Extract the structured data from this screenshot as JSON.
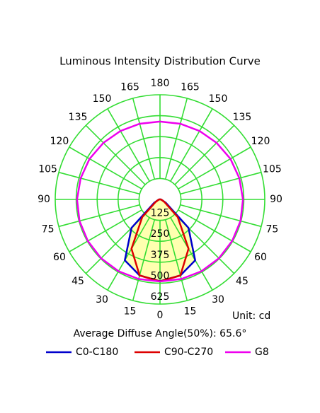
{
  "chart_data": {
    "type": "polar",
    "title": "Luminous Intensity Distribution Curve",
    "unit_label": "Unit: cd",
    "annotation": "Average Diffuse Angle(50%): 65.6°",
    "angles": [
      0,
      15,
      30,
      45,
      60,
      75,
      90,
      105,
      120,
      135,
      150,
      165,
      180
    ],
    "angle_ticks": [
      0,
      15,
      30,
      45,
      60,
      75,
      90,
      105,
      120,
      135,
      150,
      165,
      180
    ],
    "rlim": [
      0,
      625
    ],
    "rticks": [
      125,
      250,
      375,
      500,
      625
    ],
    "grid": true,
    "series": [
      {
        "name": "C0-C180",
        "color": "#0000cc",
        "fill": "#ffffb0",
        "values": [
          488,
          470,
          420,
          240,
          40,
          10,
          5,
          0,
          0,
          0,
          0,
          0,
          0
        ]
      },
      {
        "name": "C90-C270",
        "color": "#dd0000",
        "fill": "#ffffb0",
        "values": [
          490,
          470,
          340,
          150,
          30,
          10,
          5,
          0,
          0,
          0,
          0,
          0,
          0
        ]
      },
      {
        "name": "G8",
        "color": "#ee00ee",
        "values": [
          490,
          492,
          495,
          497,
          497,
          497,
          495,
          490,
          485,
          478,
          472,
          468,
          465
        ]
      }
    ]
  }
}
